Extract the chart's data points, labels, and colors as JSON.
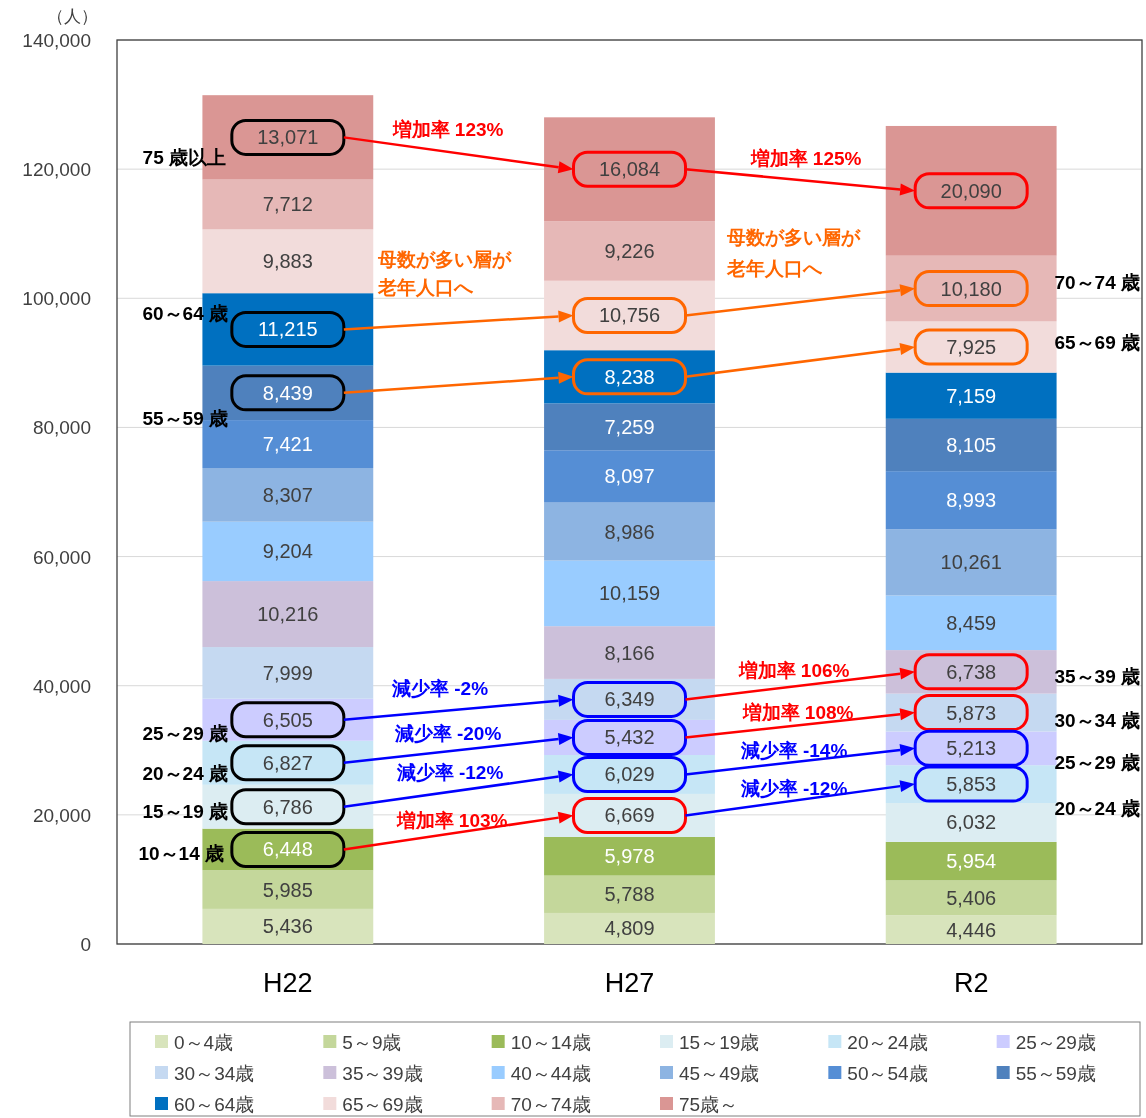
{
  "chart_data": {
    "type": "bar",
    "stacked": true,
    "ylabel": "（人）",
    "categories": [
      "H22",
      "H27",
      "R2"
    ],
    "ylim": [
      0,
      140000
    ],
    "yticks": [
      {
        "value": 0,
        "label": "0"
      },
      {
        "value": 20000,
        "label": "20,000"
      },
      {
        "value": 40000,
        "label": "40,000"
      },
      {
        "value": 60000,
        "label": "60,000"
      },
      {
        "value": 80000,
        "label": "80,000"
      },
      {
        "value": 100000,
        "label": "100,000"
      },
      {
        "value": 120000,
        "label": "120,000"
      },
      {
        "value": 140000,
        "label": "140,000"
      }
    ],
    "grid": "y",
    "legend": "bottom",
    "series": [
      {
        "name": "0～4歳",
        "color": "#d8e4bc",
        "values": [
          5436,
          4809,
          4446
        ],
        "value_labels": [
          "5,436",
          "4,809",
          "4,446"
        ]
      },
      {
        "name": "5～9歳",
        "color": "#c4d79b",
        "values": [
          5985,
          5788,
          5406
        ],
        "value_labels": [
          "5,985",
          "5,788",
          "5,406"
        ]
      },
      {
        "name": "10～14歳",
        "color": "#9bbb59",
        "values": [
          6448,
          5978,
          5954
        ],
        "value_labels": [
          "6,448",
          "5,978",
          "5,954"
        ]
      },
      {
        "name": "15～19歳",
        "color": "#dcedf2",
        "values": [
          6786,
          6669,
          6032
        ],
        "value_labels": [
          "6,786",
          "6,669",
          "6,032"
        ]
      },
      {
        "name": "20～24歳",
        "color": "#c6e6f6",
        "values": [
          6827,
          6029,
          5853
        ],
        "value_labels": [
          "6,827",
          "6,029",
          "5,853"
        ]
      },
      {
        "name": "25～29歳",
        "color": "#ccccff",
        "values": [
          6505,
          5432,
          5213
        ],
        "value_labels": [
          "6,505",
          "5,432",
          "5,213"
        ]
      },
      {
        "name": "30～34歳",
        "color": "#c5d9f1",
        "values": [
          7999,
          6349,
          5873
        ],
        "value_labels": [
          "7,999",
          "6,349",
          "5,873"
        ]
      },
      {
        "name": "35～39歳",
        "color": "#ccc0da",
        "values": [
          10216,
          8166,
          6738
        ],
        "value_labels": [
          "10,216",
          "8,166",
          "6,738"
        ]
      },
      {
        "name": "40～44歳",
        "color": "#99ccff",
        "values": [
          9204,
          10159,
          8459
        ],
        "value_labels": [
          "9,204",
          "10,159",
          "8,459"
        ]
      },
      {
        "name": "45～49歳",
        "color": "#8db4e2",
        "values": [
          8307,
          8986,
          10261
        ],
        "value_labels": [
          "8,307",
          "8,986",
          "10,261"
        ]
      },
      {
        "name": "50～54歳",
        "color": "#558ed5",
        "values": [
          7421,
          8097,
          8993
        ],
        "value_labels": [
          "7,421",
          "8,097",
          "8,993"
        ]
      },
      {
        "name": "55～59歳",
        "color": "#4f81bd",
        "values": [
          8439,
          7259,
          8105
        ],
        "value_labels": [
          "8,439",
          "7,259",
          "8,105"
        ]
      },
      {
        "name": "60～64歳",
        "color": "#0070c0",
        "values": [
          11215,
          8238,
          7159
        ],
        "value_labels": [
          "11,215",
          "8,238",
          "7,159"
        ]
      },
      {
        "name": "65～69歳",
        "color": "#f2dcdb",
        "values": [
          9883,
          10756,
          7925
        ],
        "value_labels": [
          "9,883",
          "10,756",
          "7,925"
        ]
      },
      {
        "name": "70～74歳",
        "color": "#e6b8b7",
        "values": [
          7712,
          9226,
          10180
        ],
        "value_labels": [
          "7,712",
          "9,226",
          "10,180"
        ]
      },
      {
        "name": "75歳～",
        "color": "#da9694",
        "values": [
          13071,
          16084,
          20090
        ],
        "value_labels": [
          "13,071",
          "16,084",
          "20,090"
        ]
      }
    ],
    "annotations": [
      "75 歳以上",
      "60～64 歳",
      "55～59 歳",
      "25～29 歳",
      "20～24 歳",
      "15～19 歳",
      "10～14 歳",
      "70～74 歳",
      "65～69 歳",
      "35～39 歳",
      "30～34 歳",
      "25～29 歳",
      "20～24 歳",
      "増加率  123%",
      "母数が多い層が",
      "老年人口へ",
      "減少率  -2%",
      "減少率  -20%",
      "減少率  -12%",
      "増加率  103%",
      "増加率  125%",
      "母数が多い層が",
      "老年人口へ",
      "増加率  106%",
      "増加率  108%",
      "減少率  -14%",
      "減少率  -12%"
    ]
  }
}
